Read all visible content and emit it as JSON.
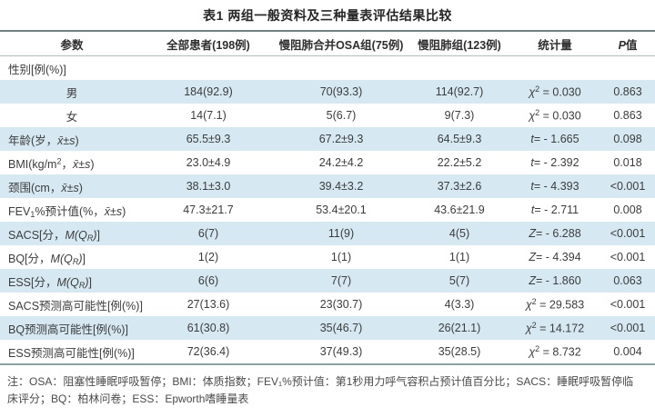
{
  "title": "表1 两组一般资料及三种量表评估结果比较",
  "colors": {
    "row_shaded": "#d6e8f1",
    "border_top": "#6a8585",
    "border_bottom": "#8aa3a3",
    "header_rule": "#b0c0c0"
  },
  "table": {
    "columns": [
      {
        "parts": [
          {
            "t": "参数"
          }
        ]
      },
      {
        "parts": [
          {
            "t": "全部患者(198例)"
          }
        ]
      },
      {
        "parts": [
          {
            "t": "慢阻肺合并OSA组(75例)"
          }
        ]
      },
      {
        "parts": [
          {
            "t": "慢阻肺组(123例)"
          }
        ]
      },
      {
        "parts": [
          {
            "t": "统计量"
          }
        ]
      },
      {
        "parts": [
          {
            "t": "P",
            "s": "i"
          },
          {
            "t": "值"
          }
        ]
      }
    ],
    "rows": [
      {
        "shaded": false,
        "center_label": false,
        "label": [
          {
            "t": "性别[例(%)]"
          }
        ],
        "values": [
          [],
          [],
          [],
          [],
          []
        ]
      },
      {
        "shaded": true,
        "center_label": true,
        "label": [
          {
            "t": "男"
          }
        ],
        "values": [
          [
            {
              "t": "184(92.9)"
            }
          ],
          [
            {
              "t": "70(93.3)"
            }
          ],
          [
            {
              "t": "114(92.7)"
            }
          ],
          [
            {
              "t": "χ",
              "s": "i"
            },
            {
              "t": "2",
              "s": "sup"
            },
            {
              "t": " = 0.030"
            }
          ],
          [
            {
              "t": "0.863"
            }
          ]
        ]
      },
      {
        "shaded": false,
        "center_label": true,
        "label": [
          {
            "t": "女"
          }
        ],
        "values": [
          [
            {
              "t": "14(7.1)"
            }
          ],
          [
            {
              "t": "5(6.7)"
            }
          ],
          [
            {
              "t": "9(7.3)"
            }
          ],
          [
            {
              "t": "χ",
              "s": "i"
            },
            {
              "t": "2",
              "s": "sup"
            },
            {
              "t": " = 0.030"
            }
          ],
          [
            {
              "t": "0.863"
            }
          ]
        ]
      },
      {
        "shaded": true,
        "center_label": false,
        "label": [
          {
            "t": "年龄(岁，"
          },
          {
            "t": "x̄±s",
            "s": "i"
          },
          {
            "t": ")"
          }
        ],
        "values": [
          [
            {
              "t": "65.5±9.3"
            }
          ],
          [
            {
              "t": "67.2±9.3"
            }
          ],
          [
            {
              "t": "64.5±9.3"
            }
          ],
          [
            {
              "t": "t",
              "s": "i"
            },
            {
              "t": "= - 1.665"
            }
          ],
          [
            {
              "t": "0.098"
            }
          ]
        ]
      },
      {
        "shaded": false,
        "center_label": false,
        "label": [
          {
            "t": "BMI(kg/m"
          },
          {
            "t": "2",
            "s": "sup"
          },
          {
            "t": "，"
          },
          {
            "t": "x̄±s",
            "s": "i"
          },
          {
            "t": ")"
          }
        ],
        "values": [
          [
            {
              "t": "23.0±4.9"
            }
          ],
          [
            {
              "t": "24.2±4.2"
            }
          ],
          [
            {
              "t": "22.2±5.2"
            }
          ],
          [
            {
              "t": "t",
              "s": "i"
            },
            {
              "t": "= - 2.392"
            }
          ],
          [
            {
              "t": "0.018"
            }
          ]
        ]
      },
      {
        "shaded": true,
        "center_label": false,
        "label": [
          {
            "t": "颈围(cm，"
          },
          {
            "t": "x̄±s",
            "s": "i"
          },
          {
            "t": ")"
          }
        ],
        "values": [
          [
            {
              "t": "38.1±3.0"
            }
          ],
          [
            {
              "t": "39.4±3.2"
            }
          ],
          [
            {
              "t": "37.3±2.6"
            }
          ],
          [
            {
              "t": "t",
              "s": "i"
            },
            {
              "t": "= - 4.393"
            }
          ],
          [
            {
              "t": "<0.001"
            }
          ]
        ]
      },
      {
        "shaded": false,
        "center_label": false,
        "label": [
          {
            "t": "FEV"
          },
          {
            "t": "1",
            "s": "sub"
          },
          {
            "t": "%预计值(%，"
          },
          {
            "t": "x̄±s",
            "s": "i"
          },
          {
            "t": ")"
          }
        ],
        "values": [
          [
            {
              "t": "47.3±21.7"
            }
          ],
          [
            {
              "t": "53.4±20.1"
            }
          ],
          [
            {
              "t": "43.6±21.9"
            }
          ],
          [
            {
              "t": "t",
              "s": "i"
            },
            {
              "t": "= - 2.711"
            }
          ],
          [
            {
              "t": "0.008"
            }
          ]
        ]
      },
      {
        "shaded": true,
        "center_label": false,
        "label": [
          {
            "t": "SACS[分，"
          },
          {
            "t": "M(Q",
            "s": "i"
          },
          {
            "t": "R",
            "s": "isub"
          },
          {
            "t": ")",
            "s": "i"
          },
          {
            "t": "]"
          }
        ],
        "values": [
          [
            {
              "t": "6(7)"
            }
          ],
          [
            {
              "t": "11(9)"
            }
          ],
          [
            {
              "t": "4(5)"
            }
          ],
          [
            {
              "t": "Z",
              "s": "i"
            },
            {
              "t": "= - 6.288"
            }
          ],
          [
            {
              "t": "<0.001"
            }
          ]
        ]
      },
      {
        "shaded": false,
        "center_label": false,
        "label": [
          {
            "t": "BQ[分，"
          },
          {
            "t": "M(Q",
            "s": "i"
          },
          {
            "t": "R",
            "s": "isub"
          },
          {
            "t": ")",
            "s": "i"
          },
          {
            "t": "]"
          }
        ],
        "values": [
          [
            {
              "t": "1(2)"
            }
          ],
          [
            {
              "t": "1(1)"
            }
          ],
          [
            {
              "t": "1(1)"
            }
          ],
          [
            {
              "t": "Z",
              "s": "i"
            },
            {
              "t": "= - 4.394"
            }
          ],
          [
            {
              "t": "<0.001"
            }
          ]
        ]
      },
      {
        "shaded": true,
        "center_label": false,
        "label": [
          {
            "t": "ESS[分，"
          },
          {
            "t": "M(Q",
            "s": "i"
          },
          {
            "t": "R",
            "s": "isub"
          },
          {
            "t": ")",
            "s": "i"
          },
          {
            "t": "]"
          }
        ],
        "values": [
          [
            {
              "t": "6(6)"
            }
          ],
          [
            {
              "t": "7(7)"
            }
          ],
          [
            {
              "t": "5(7)"
            }
          ],
          [
            {
              "t": "Z",
              "s": "i"
            },
            {
              "t": "= - 1.860"
            }
          ],
          [
            {
              "t": "0.063"
            }
          ]
        ]
      },
      {
        "shaded": false,
        "center_label": false,
        "label": [
          {
            "t": "SACS预测高可能性[例(%)]"
          }
        ],
        "values": [
          [
            {
              "t": "27(13.6)"
            }
          ],
          [
            {
              "t": "23(30.7)"
            }
          ],
          [
            {
              "t": "4(3.3)"
            }
          ],
          [
            {
              "t": "χ",
              "s": "i"
            },
            {
              "t": "2",
              "s": "sup"
            },
            {
              "t": " = 29.583"
            }
          ],
          [
            {
              "t": "<0.001"
            }
          ]
        ]
      },
      {
        "shaded": true,
        "center_label": false,
        "label": [
          {
            "t": "BQ预测高可能性[例(%)]"
          }
        ],
        "values": [
          [
            {
              "t": "61(30.8)"
            }
          ],
          [
            {
              "t": "35(46.7)"
            }
          ],
          [
            {
              "t": "26(21.1)"
            }
          ],
          [
            {
              "t": "χ",
              "s": "i"
            },
            {
              "t": "2",
              "s": "sup"
            },
            {
              "t": " = 14.172"
            }
          ],
          [
            {
              "t": "<0.001"
            }
          ]
        ]
      },
      {
        "shaded": false,
        "center_label": false,
        "label": [
          {
            "t": "ESS预测高可能性[例(%)]"
          }
        ],
        "values": [
          [
            {
              "t": "72(36.4)"
            }
          ],
          [
            {
              "t": "37(49.3)"
            }
          ],
          [
            {
              "t": "35(28.5)"
            }
          ],
          [
            {
              "t": "χ",
              "s": "i"
            },
            {
              "t": "2",
              "s": "sup"
            },
            {
              "t": " = 8.732"
            }
          ],
          [
            {
              "t": "0.004"
            }
          ]
        ]
      }
    ]
  },
  "footnote": "注：OSA：阻塞性睡眠呼吸暂停；BMI：体质指数；FEV₁%预计值：第1秒用力呼气容积占预计值百分比；SACS：睡眠呼吸暂停临床评分；BQ：柏林问卷；ESS：Epworth嗜睡量表"
}
